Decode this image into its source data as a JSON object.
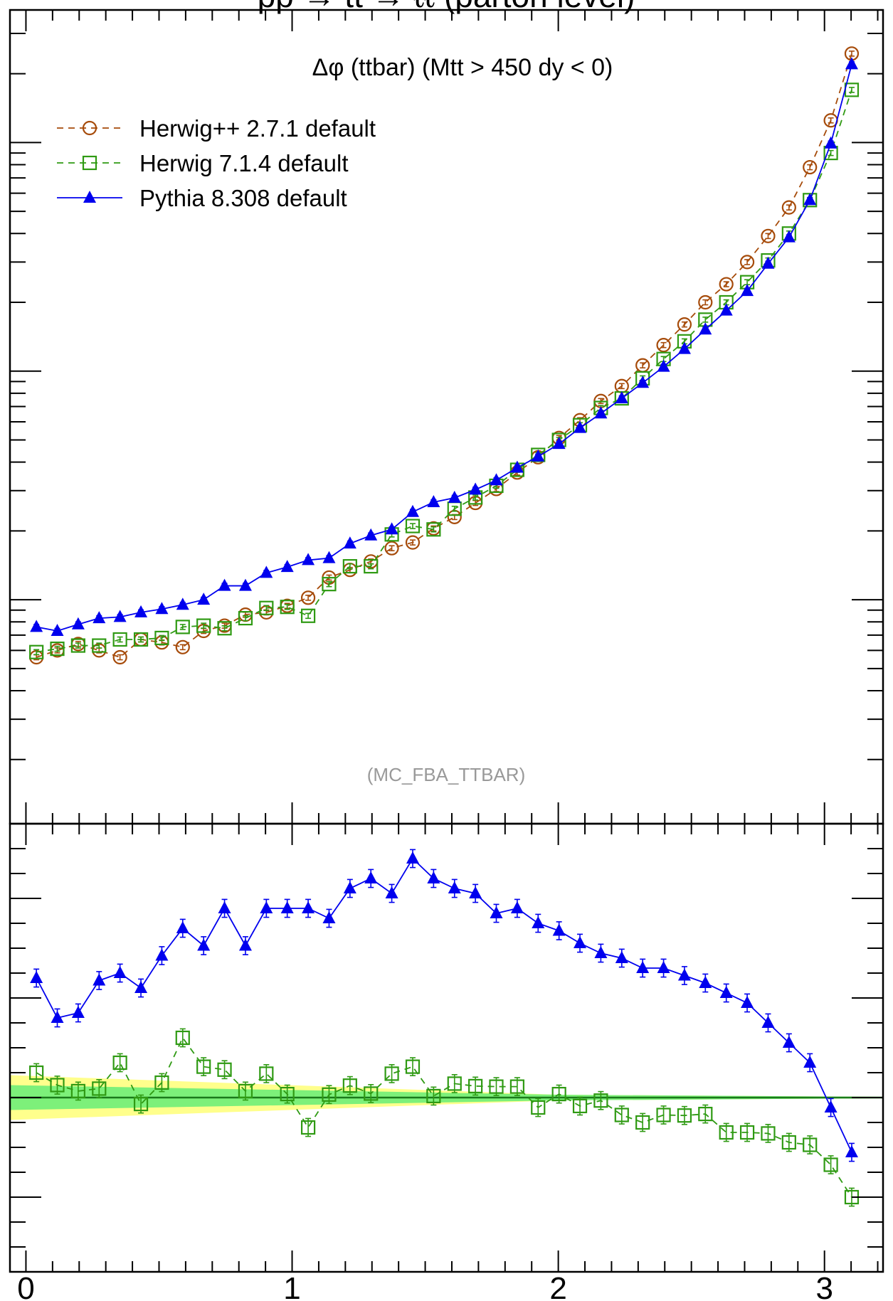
{
  "header_text": "pp → tt̅ → ℓℓ (parton level)",
  "annotation": "(MC_FBA_TTBAR)",
  "colors": {
    "herwigpp": "#a64b0a",
    "herwig7": "#2f9a13",
    "pythia": "#0000ee",
    "band_outer": "#ffff8c",
    "band_inner": "#7df07a",
    "ref_line": "#1b7a1b"
  },
  "chart_data": [
    {
      "type": "line",
      "title": "Δφ (ttbar) (Mtt > 450 dy < 0)",
      "xlabel": "",
      "ylabel": "",
      "xlim": [
        -0.06,
        3.22
      ],
      "log_scale": true,
      "y_tick_labels_visible": false,
      "legend_position": "top-left",
      "x": [
        0.0393,
        0.1178,
        0.1963,
        0.2749,
        0.3534,
        0.432,
        0.5105,
        0.589,
        0.6676,
        0.7461,
        0.8247,
        0.9032,
        0.9817,
        1.0603,
        1.1388,
        1.2174,
        1.2959,
        1.3744,
        1.453,
        1.5315,
        1.6101,
        1.6886,
        1.7671,
        1.8457,
        1.9242,
        2.0028,
        2.0813,
        2.1598,
        2.2384,
        2.3169,
        2.3955,
        2.474,
        2.5525,
        2.6311,
        2.7096,
        2.7882,
        2.8667,
        2.9452,
        3.0238,
        3.1023
      ],
      "series": [
        {
          "name": "Herwig++ 2.7.1 default",
          "color": "#a64b0a",
          "marker": "open-circle",
          "linestyle": "dashed",
          "values": [
            0.56,
            0.6,
            0.64,
            0.6,
            0.56,
            0.67,
            0.65,
            0.62,
            0.73,
            0.77,
            0.86,
            0.88,
            0.94,
            1.02,
            1.25,
            1.35,
            1.47,
            1.68,
            1.78,
            2.05,
            2.3,
            2.65,
            3.05,
            3.6,
            4.2,
            5.1,
            6.1,
            7.4,
            8.6,
            10.6,
            13.0,
            16.0,
            20.0,
            24.0,
            30.0,
            39.0,
            52.0,
            78.0,
            125.0,
            245.0
          ]
        },
        {
          "name": "Herwig 7.1.4 default",
          "color": "#2f9a13",
          "marker": "open-square",
          "linestyle": "dashed",
          "values": [
            0.59,
            0.61,
            0.63,
            0.63,
            0.67,
            0.67,
            0.68,
            0.76,
            0.77,
            0.75,
            0.83,
            0.92,
            0.93,
            0.85,
            1.17,
            1.4,
            1.4,
            1.93,
            2.1,
            2.03,
            2.5,
            2.8,
            3.15,
            3.7,
            4.3,
            5.0,
            5.8,
            6.9,
            7.6,
            9.3,
            11.3,
            13.5,
            16.8,
            20.0,
            24.5,
            30.5,
            40.0,
            56.0,
            90.0,
            170.0
          ]
        },
        {
          "name": "Pythia 8.308 default",
          "color": "#0000ee",
          "marker": "filled-triangle",
          "linestyle": "solid",
          "values": [
            0.76,
            0.73,
            0.78,
            0.83,
            0.84,
            0.88,
            0.91,
            0.95,
            1.0,
            1.15,
            1.15,
            1.31,
            1.39,
            1.49,
            1.52,
            1.76,
            1.91,
            2.03,
            2.42,
            2.67,
            2.79,
            3.03,
            3.33,
            3.78,
            4.23,
            4.8,
            5.64,
            6.53,
            7.6,
            8.88,
            10.45,
            12.5,
            15.2,
            18.4,
            22.4,
            29.5,
            38.5,
            56.0,
            99.0,
            220.0
          ]
        }
      ]
    },
    {
      "type": "line",
      "title": "",
      "xlabel": "",
      "ylabel": "",
      "xlim": [
        -0.06,
        3.22
      ],
      "ylim": [
        -0.35,
        0.55
      ],
      "x_ticks": [
        0,
        1,
        2,
        3
      ],
      "x_tick_labels": [
        "0",
        "1",
        "2",
        "3"
      ],
      "y_tick_labels_visible": false,
      "reference_line": 0,
      "band_outer_halfwidth": [
        0.045,
        0.0
      ],
      "band_inner_halfwidth": [
        0.025,
        0.0
      ],
      "x": [
        0.0393,
        0.1178,
        0.1963,
        0.2749,
        0.3534,
        0.432,
        0.5105,
        0.589,
        0.6676,
        0.7461,
        0.8247,
        0.9032,
        0.9817,
        1.0603,
        1.1388,
        1.2174,
        1.2959,
        1.3744,
        1.453,
        1.5315,
        1.6101,
        1.6886,
        1.7671,
        1.8457,
        1.9242,
        2.0028,
        2.0813,
        2.1598,
        2.2384,
        2.3169,
        2.3955,
        2.474,
        2.5525,
        2.6311,
        2.7096,
        2.7882,
        2.8667,
        2.9452,
        3.0238,
        3.1023
      ],
      "series": [
        {
          "name": "Herwig 7.1.4 default",
          "color": "#2f9a13",
          "marker": "open-square",
          "linestyle": "dashed",
          "values": [
            0.05,
            0.025,
            0.013,
            0.018,
            0.07,
            -0.013,
            0.03,
            0.12,
            0.062,
            0.056,
            0.013,
            0.048,
            0.007,
            -0.06,
            0.006,
            0.024,
            0.008,
            0.048,
            0.062,
            0.003,
            0.028,
            0.023,
            0.022,
            0.022,
            -0.02,
            0.007,
            -0.017,
            -0.006,
            -0.035,
            -0.05,
            -0.035,
            -0.036,
            -0.033,
            -0.07,
            -0.07,
            -0.072,
            -0.09,
            -0.095,
            -0.135,
            -0.2
          ]
        },
        {
          "name": "Pythia 8.308 default",
          "color": "#0000ee",
          "marker": "filled-triangle",
          "linestyle": "solid",
          "values": [
            0.24,
            0.16,
            0.17,
            0.235,
            0.25,
            0.22,
            0.285,
            0.34,
            0.305,
            0.38,
            0.305,
            0.38,
            0.38,
            0.38,
            0.36,
            0.42,
            0.44,
            0.41,
            0.48,
            0.44,
            0.42,
            0.41,
            0.37,
            0.38,
            0.35,
            0.335,
            0.31,
            0.29,
            0.28,
            0.26,
            0.26,
            0.245,
            0.23,
            0.21,
            0.19,
            0.15,
            0.11,
            0.07,
            -0.02,
            -0.11
          ]
        }
      ]
    }
  ]
}
